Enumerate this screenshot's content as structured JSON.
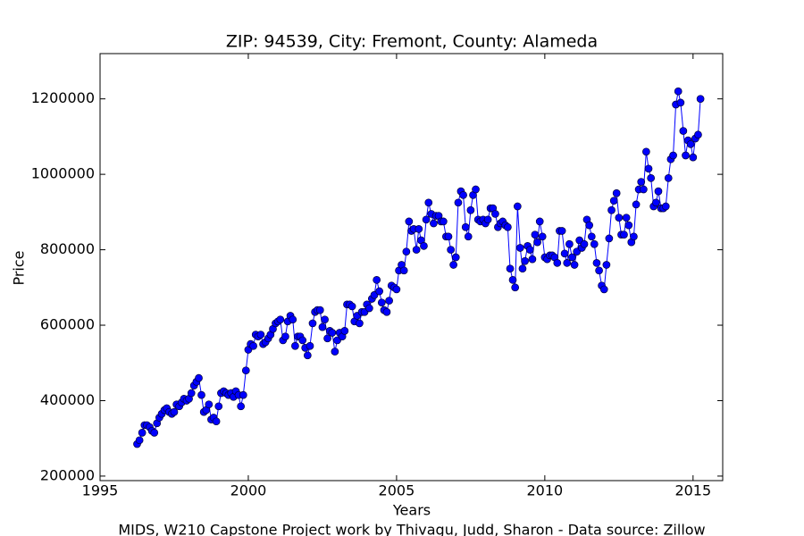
{
  "chart_data": {
    "type": "line",
    "title": "ZIP: 94539, City: Fremont, County: Alameda",
    "x_label": "Years",
    "y_label": "Price",
    "footer": "MIDS, W210 Capstone Project work by Thivagu, Judd, Sharon  -  Data source: Zillow",
    "color": "#0000ff",
    "xlim": [
      1995,
      2016
    ],
    "xticks": [
      1995,
      2000,
      2005,
      2010,
      2015
    ],
    "ylim": [
      188000,
      1320000
    ],
    "yticks": [
      200000,
      400000,
      600000,
      800000,
      1000000,
      1200000
    ],
    "x": [
      1996.25,
      1996.33,
      1996.42,
      1996.5,
      1996.58,
      1996.67,
      1996.75,
      1996.83,
      1996.92,
      1997,
      1997.08,
      1997.17,
      1997.25,
      1997.33,
      1997.42,
      1997.5,
      1997.58,
      1997.67,
      1997.75,
      1997.83,
      1997.92,
      1998,
      1998.08,
      1998.17,
      1998.25,
      1998.33,
      1998.42,
      1998.5,
      1998.58,
      1998.67,
      1998.75,
      1998.83,
      1998.92,
      1999,
      1999.08,
      1999.17,
      1999.25,
      1999.33,
      1999.42,
      1999.5,
      1999.58,
      1999.67,
      1999.75,
      1999.83,
      1999.92,
      2000,
      2000.08,
      2000.17,
      2000.25,
      2000.33,
      2000.42,
      2000.5,
      2000.58,
      2000.67,
      2000.75,
      2000.83,
      2000.92,
      2001,
      2001.08,
      2001.17,
      2001.25,
      2001.33,
      2001.42,
      2001.5,
      2001.58,
      2001.67,
      2001.75,
      2001.83,
      2001.92,
      2002,
      2002.08,
      2002.17,
      2002.25,
      2002.33,
      2002.42,
      2002.5,
      2002.58,
      2002.67,
      2002.75,
      2002.83,
      2002.92,
      2003,
      2003.08,
      2003.17,
      2003.25,
      2003.33,
      2003.42,
      2003.5,
      2003.58,
      2003.67,
      2003.75,
      2003.83,
      2003.92,
      2004,
      2004.08,
      2004.17,
      2004.25,
      2004.33,
      2004.42,
      2004.5,
      2004.58,
      2004.67,
      2004.75,
      2004.83,
      2004.92,
      2005,
      2005.08,
      2005.17,
      2005.25,
      2005.33,
      2005.42,
      2005.5,
      2005.58,
      2005.67,
      2005.75,
      2005.83,
      2005.92,
      2006,
      2006.08,
      2006.17,
      2006.25,
      2006.33,
      2006.42,
      2006.5,
      2006.58,
      2006.67,
      2006.75,
      2006.83,
      2006.92,
      2007,
      2007.08,
      2007.17,
      2007.25,
      2007.33,
      2007.42,
      2007.5,
      2007.58,
      2007.67,
      2007.75,
      2007.83,
      2007.92,
      2008,
      2008.08,
      2008.17,
      2008.25,
      2008.33,
      2008.42,
      2008.5,
      2008.58,
      2008.67,
      2008.75,
      2008.83,
      2008.92,
      2009,
      2009.08,
      2009.17,
      2009.25,
      2009.33,
      2009.42,
      2009.5,
      2009.58,
      2009.67,
      2009.75,
      2009.83,
      2009.92,
      2010,
      2010.08,
      2010.17,
      2010.25,
      2010.33,
      2010.42,
      2010.5,
      2010.58,
      2010.67,
      2010.75,
      2010.83,
      2010.92,
      2011,
      2011.08,
      2011.17,
      2011.25,
      2011.33,
      2011.42,
      2011.5,
      2011.58,
      2011.67,
      2011.75,
      2011.83,
      2011.92,
      2012,
      2012.08,
      2012.17,
      2012.25,
      2012.33,
      2012.42,
      2012.5,
      2012.58,
      2012.67,
      2012.75,
      2012.83,
      2012.92,
      2013,
      2013.08,
      2013.17,
      2013.25,
      2013.33,
      2013.42,
      2013.5,
      2013.58,
      2013.67,
      2013.75,
      2013.83,
      2013.92,
      2014,
      2014.08,
      2014.17,
      2014.25,
      2014.33,
      2014.42,
      2014.5,
      2014.58,
      2014.67,
      2014.75,
      2014.83,
      2014.92,
      2015,
      2015.08,
      2015.17,
      2015.25
    ],
    "values": [
      285000,
      295000,
      315000,
      335000,
      335000,
      330000,
      320000,
      315000,
      340000,
      355000,
      365000,
      375000,
      380000,
      370000,
      365000,
      370000,
      390000,
      385000,
      395000,
      405000,
      400000,
      405000,
      420000,
      440000,
      450000,
      460000,
      415000,
      370000,
      375000,
      390000,
      350000,
      355000,
      345000,
      385000,
      420000,
      425000,
      420000,
      415000,
      420000,
      410000,
      425000,
      415000,
      385000,
      415000,
      480000,
      535000,
      550000,
      545000,
      575000,
      570000,
      575000,
      550000,
      555000,
      565000,
      575000,
      590000,
      605000,
      610000,
      615000,
      560000,
      570000,
      610000,
      625000,
      615000,
      545000,
      570000,
      570000,
      560000,
      540000,
      520000,
      545000,
      605000,
      635000,
      640000,
      640000,
      595000,
      615000,
      565000,
      585000,
      580000,
      530000,
      560000,
      580000,
      570000,
      585000,
      655000,
      655000,
      650000,
      610000,
      625000,
      605000,
      635000,
      635000,
      655000,
      645000,
      670000,
      680000,
      720000,
      690000,
      660000,
      640000,
      635000,
      665000,
      705000,
      700000,
      695000,
      745000,
      760000,
      745000,
      795000,
      875000,
      850000,
      855000,
      800000,
      855000,
      825000,
      810000,
      880000,
      925000,
      895000,
      870000,
      890000,
      890000,
      875000,
      875000,
      835000,
      835000,
      800000,
      760000,
      780000,
      925000,
      955000,
      945000,
      860000,
      835000,
      905000,
      945000,
      960000,
      880000,
      875000,
      880000,
      870000,
      880000,
      910000,
      910000,
      895000,
      860000,
      870000,
      875000,
      865000,
      860000,
      750000,
      720000,
      700000,
      915000,
      805000,
      750000,
      770000,
      810000,
      800000,
      775000,
      840000,
      820000,
      875000,
      835000,
      780000,
      775000,
      785000,
      785000,
      780000,
      765000,
      850000,
      850000,
      790000,
      765000,
      815000,
      780000,
      760000,
      795000,
      825000,
      805000,
      815000,
      880000,
      865000,
      835000,
      815000,
      765000,
      745000,
      705000,
      695000,
      760000,
      830000,
      905000,
      930000,
      950000,
      885000,
      840000,
      840000,
      885000,
      865000,
      820000,
      835000,
      920000,
      960000,
      980000,
      960000,
      1060000,
      1015000,
      990000,
      915000,
      925000,
      955000,
      910000,
      910000,
      915000,
      990000,
      1040000,
      1050000,
      1185000,
      1220000,
      1190000,
      1115000,
      1050000,
      1090000,
      1080000,
      1045000,
      1095000,
      1105000,
      1200000
    ]
  }
}
